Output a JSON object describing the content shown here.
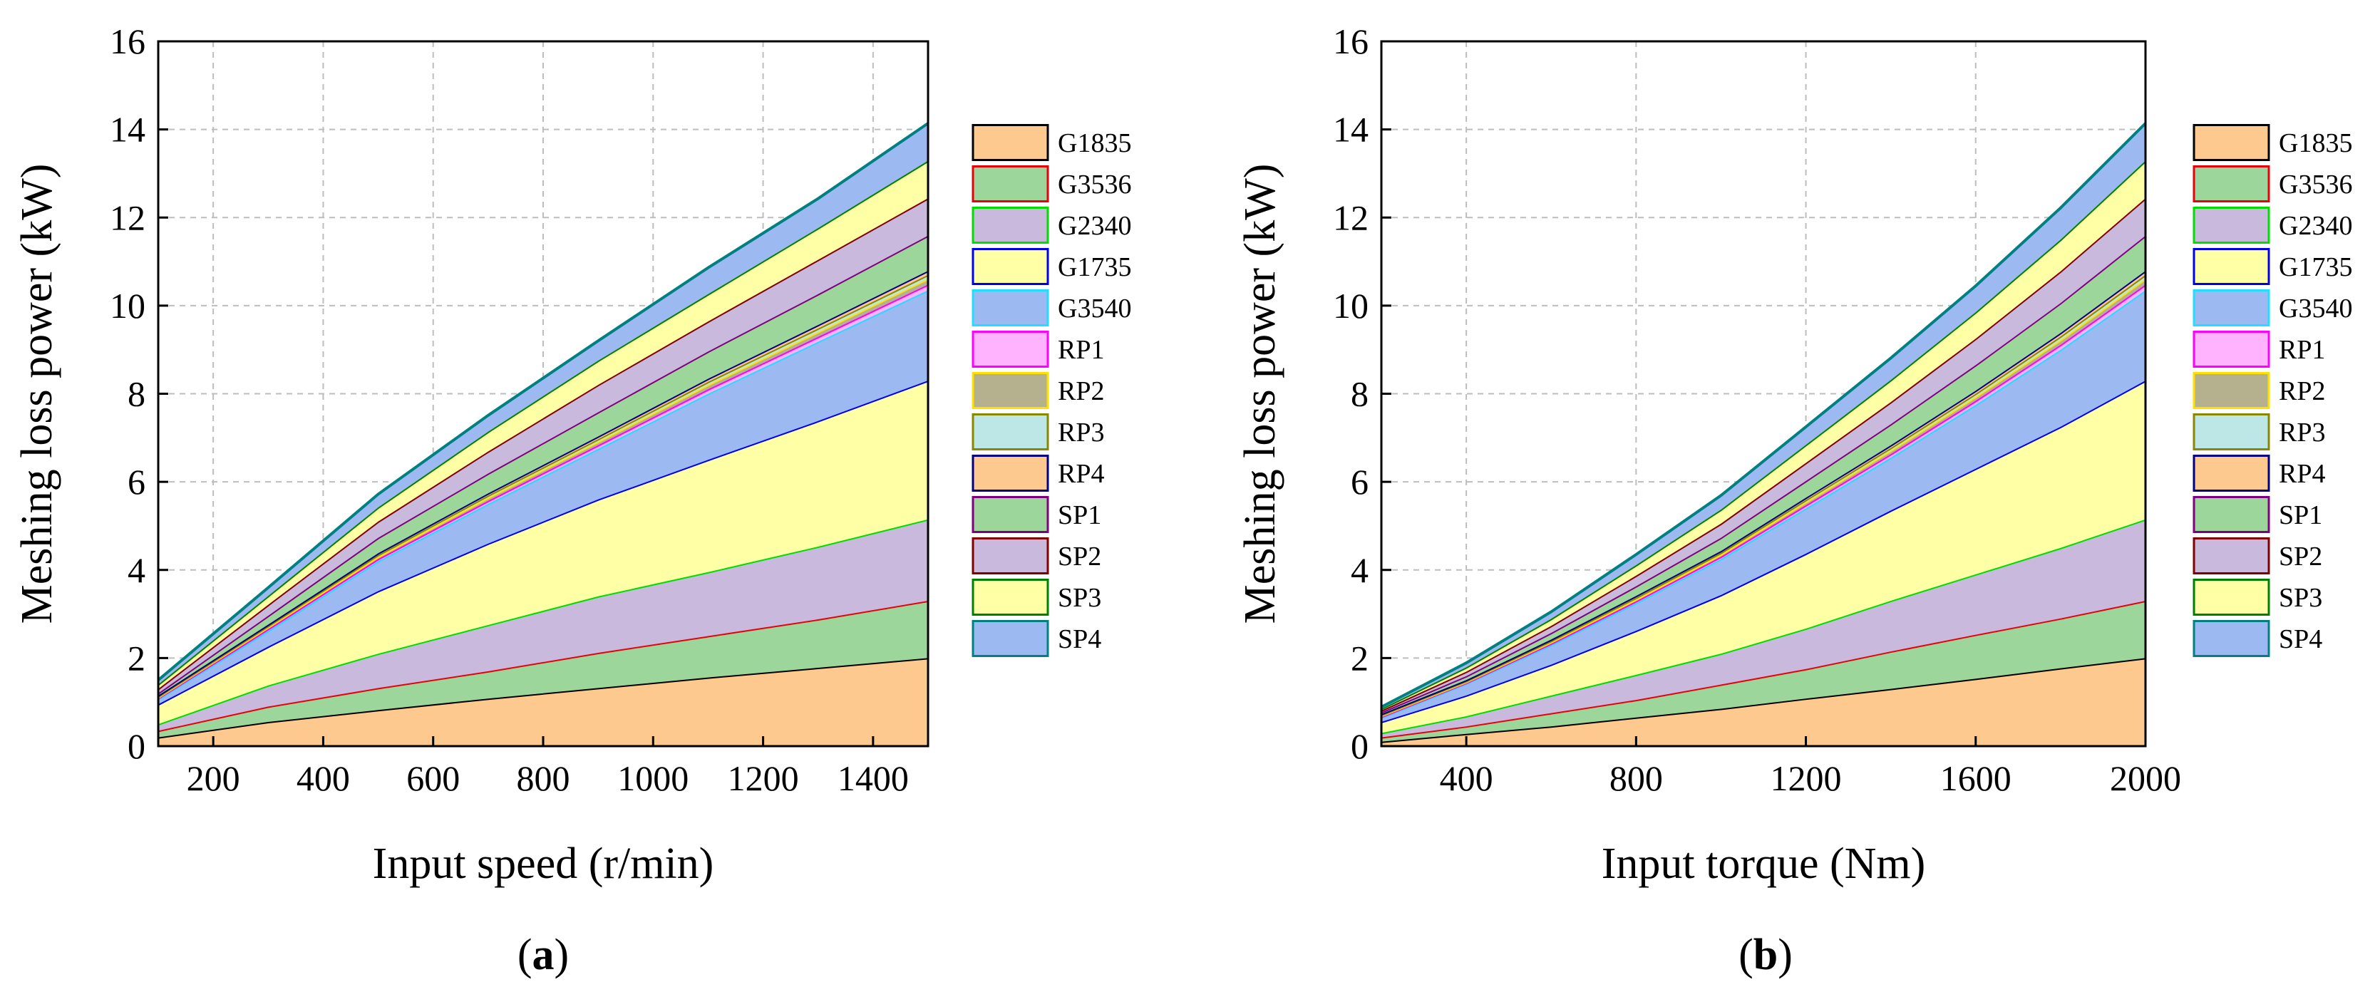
{
  "chart_data": [
    {
      "type": "area",
      "stacked": true,
      "panel_label": {
        "open": "(",
        "letter": "a",
        "close": ")"
      },
      "xlabel": "Input speed (r/min)",
      "ylabel": "Meshing loss power (kW)",
      "xlim": [
        100,
        1500
      ],
      "ylim": [
        0,
        16
      ],
      "xticks": [
        200,
        400,
        600,
        800,
        1000,
        1200,
        1400
      ],
      "yticks": [
        0,
        2,
        4,
        6,
        8,
        10,
        12,
        14,
        16
      ],
      "grid": true,
      "legend_position": "right",
      "x": [
        100,
        300,
        500,
        700,
        900,
        1100,
        1300,
        1500
      ],
      "series": [
        {
          "name": "G1835",
          "fill": "#FDC98E",
          "stroke": "#000000",
          "values": [
            0.2,
            0.55,
            0.82,
            1.08,
            1.32,
            1.56,
            1.78,
            2.0
          ]
        },
        {
          "name": "G3536",
          "fill": "#9CD69A",
          "stroke": "#E8000B",
          "values": [
            0.15,
            0.35,
            0.5,
            0.62,
            0.8,
            0.94,
            1.1,
            1.3
          ]
        },
        {
          "name": "G2340",
          "fill": "#C9B9DC",
          "stroke": "#00DD00",
          "values": [
            0.15,
            0.48,
            0.78,
            1.05,
            1.28,
            1.45,
            1.65,
            1.85
          ]
        },
        {
          "name": "G1735",
          "fill": "#FFFFA5",
          "stroke": "#0000EE",
          "values": [
            0.45,
            0.88,
            1.42,
            1.85,
            2.2,
            2.55,
            2.85,
            3.15
          ]
        },
        {
          "name": "G3540",
          "fill": "#9DB9F2",
          "stroke": "#22DDFF",
          "values": [
            0.12,
            0.36,
            0.68,
            0.9,
            1.15,
            1.5,
            1.8,
            2.05
          ]
        },
        {
          "name": "RP1",
          "fill": "#FFB3FF",
          "stroke": "#FF00FF",
          "values": [
            0.02,
            0.04,
            0.05,
            0.07,
            0.08,
            0.1,
            0.11,
            0.13
          ]
        },
        {
          "name": "RP2",
          "fill": "#B5B08E",
          "stroke": "#FFE100",
          "values": [
            0.02,
            0.04,
            0.05,
            0.07,
            0.08,
            0.1,
            0.11,
            0.13
          ]
        },
        {
          "name": "RP3",
          "fill": "#BCE7E6",
          "stroke": "#888800",
          "values": [
            0.02,
            0.03,
            0.04,
            0.05,
            0.06,
            0.07,
            0.08,
            0.09
          ]
        },
        {
          "name": "RP4",
          "fill": "#FDC98E",
          "stroke": "#000080",
          "values": [
            0.02,
            0.03,
            0.04,
            0.05,
            0.06,
            0.07,
            0.08,
            0.09
          ]
        },
        {
          "name": "SP1",
          "fill": "#9CD69A",
          "stroke": "#800080",
          "values": [
            0.05,
            0.2,
            0.35,
            0.45,
            0.55,
            0.62,
            0.7,
            0.8
          ]
        },
        {
          "name": "SP2",
          "fill": "#C9B9DC",
          "stroke": "#800000",
          "values": [
            0.1,
            0.25,
            0.37,
            0.5,
            0.62,
            0.68,
            0.78,
            0.85
          ]
        },
        {
          "name": "SP3",
          "fill": "#FFFFA5",
          "stroke": "#008000",
          "values": [
            0.1,
            0.2,
            0.32,
            0.45,
            0.55,
            0.62,
            0.72,
            0.85
          ]
        },
        {
          "name": "SP4",
          "fill": "#9DB9F2",
          "stroke": "#008080",
          "values": [
            0.1,
            0.19,
            0.3,
            0.37,
            0.45,
            0.6,
            0.67,
            0.85
          ]
        }
      ]
    },
    {
      "type": "area",
      "stacked": true,
      "panel_label": {
        "open": "(",
        "letter": "b",
        "close": ")"
      },
      "xlabel": "Input torque (Nm)",
      "ylabel": "Meshing loss power (kW)",
      "xlim": [
        200,
        2000
      ],
      "ylim": [
        0,
        16
      ],
      "xticks": [
        400,
        800,
        1200,
        1600,
        2000
      ],
      "yticks": [
        0,
        2,
        4,
        6,
        8,
        10,
        12,
        14,
        16
      ],
      "grid": true,
      "legend_position": "right",
      "x": [
        200,
        400,
        600,
        800,
        1000,
        1200,
        1400,
        1600,
        1800,
        2000
      ],
      "series": [
        {
          "name": "G1835",
          "fill": "#FDC98E",
          "stroke": "#000000",
          "values": [
            0.1,
            0.28,
            0.45,
            0.65,
            0.85,
            1.08,
            1.3,
            1.53,
            1.77,
            2.0
          ]
        },
        {
          "name": "G3536",
          "fill": "#9CD69A",
          "stroke": "#E8000B",
          "values": [
            0.1,
            0.17,
            0.3,
            0.4,
            0.55,
            0.67,
            0.85,
            1.0,
            1.13,
            1.3
          ]
        },
        {
          "name": "G2340",
          "fill": "#C9B9DC",
          "stroke": "#00DD00",
          "values": [
            0.1,
            0.23,
            0.4,
            0.57,
            0.7,
            0.92,
            1.15,
            1.37,
            1.6,
            1.85
          ]
        },
        {
          "name": "G1735",
          "fill": "#FFFFA5",
          "stroke": "#0000EE",
          "values": [
            0.25,
            0.47,
            0.7,
            1.0,
            1.33,
            1.7,
            2.05,
            2.4,
            2.75,
            3.15
          ]
        },
        {
          "name": "G3540",
          "fill": "#9DB9F2",
          "stroke": "#22DDFF",
          "values": [
            0.1,
            0.27,
            0.45,
            0.63,
            0.82,
            1.03,
            1.2,
            1.45,
            1.75,
            2.05
          ]
        },
        {
          "name": "RP1",
          "fill": "#FFB3FF",
          "stroke": "#FF00FF",
          "values": [
            0.02,
            0.02,
            0.03,
            0.04,
            0.05,
            0.07,
            0.08,
            0.09,
            0.11,
            0.13
          ]
        },
        {
          "name": "RP2",
          "fill": "#B5B08E",
          "stroke": "#FFE100",
          "values": [
            0.02,
            0.02,
            0.03,
            0.04,
            0.05,
            0.07,
            0.08,
            0.09,
            0.11,
            0.13
          ]
        },
        {
          "name": "RP3",
          "fill": "#BCE7E6",
          "stroke": "#888800",
          "values": [
            0.02,
            0.02,
            0.03,
            0.04,
            0.04,
            0.05,
            0.06,
            0.07,
            0.08,
            0.09
          ]
        },
        {
          "name": "RP4",
          "fill": "#FDC98E",
          "stroke": "#000080",
          "values": [
            0.02,
            0.02,
            0.03,
            0.04,
            0.04,
            0.05,
            0.06,
            0.07,
            0.08,
            0.09
          ]
        },
        {
          "name": "SP1",
          "fill": "#9CD69A",
          "stroke": "#800080",
          "values": [
            0.04,
            0.09,
            0.15,
            0.22,
            0.3,
            0.38,
            0.48,
            0.58,
            0.68,
            0.8
          ]
        },
        {
          "name": "SP2",
          "fill": "#C9B9DC",
          "stroke": "#800000",
          "values": [
            0.04,
            0.1,
            0.16,
            0.24,
            0.32,
            0.41,
            0.5,
            0.6,
            0.72,
            0.85
          ]
        },
        {
          "name": "SP3",
          "fill": "#FFFFA5",
          "stroke": "#008000",
          "values": [
            0.04,
            0.1,
            0.16,
            0.24,
            0.32,
            0.41,
            0.5,
            0.6,
            0.72,
            0.85
          ]
        },
        {
          "name": "SP4",
          "fill": "#9DB9F2",
          "stroke": "#008080",
          "values": [
            0.04,
            0.1,
            0.16,
            0.24,
            0.32,
            0.41,
            0.5,
            0.6,
            0.72,
            0.85
          ]
        }
      ]
    }
  ]
}
